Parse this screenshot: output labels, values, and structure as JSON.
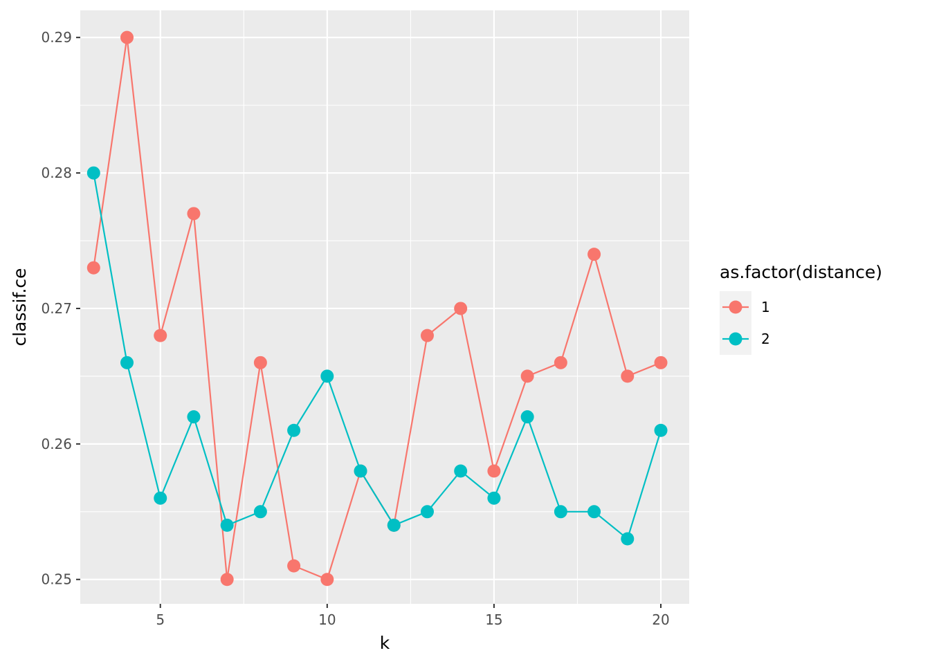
{
  "chart_data": {
    "type": "line",
    "title": "",
    "xlabel": "k",
    "ylabel": "classif.ce",
    "xlim": [
      2.6,
      20.85
    ],
    "ylim": [
      0.2482,
      0.292
    ],
    "x_ticks_major": [
      5,
      10,
      15,
      20
    ],
    "x_tick_labels": [
      "5",
      "10",
      "15",
      "20"
    ],
    "y_ticks_major": [
      0.25,
      0.26,
      0.27,
      0.28,
      0.29
    ],
    "y_tick_labels": [
      "0.25",
      "0.26",
      "0.27",
      "0.28",
      "0.29"
    ],
    "grid": true,
    "panel_background": "#ebebeb",
    "legend": {
      "title": "as.factor(distance)",
      "placement": "right"
    },
    "x": [
      3,
      4,
      5,
      6,
      7,
      8,
      9,
      10,
      11,
      12,
      13,
      14,
      15,
      16,
      17,
      18,
      19,
      20
    ],
    "series": [
      {
        "name": "1",
        "color": "#f8766d",
        "values": [
          0.273,
          0.29,
          0.268,
          0.277,
          0.25,
          0.266,
          0.251,
          0.25,
          0.258,
          0.254,
          0.268,
          0.27,
          0.258,
          0.265,
          0.266,
          0.274,
          0.265,
          0.266
        ]
      },
      {
        "name": "2",
        "color": "#00bfc4",
        "values": [
          0.28,
          0.266,
          0.256,
          0.262,
          0.254,
          0.255,
          0.261,
          0.265,
          0.258,
          0.254,
          0.255,
          0.258,
          0.256,
          0.262,
          0.255,
          0.255,
          0.253,
          0.261
        ]
      }
    ]
  }
}
